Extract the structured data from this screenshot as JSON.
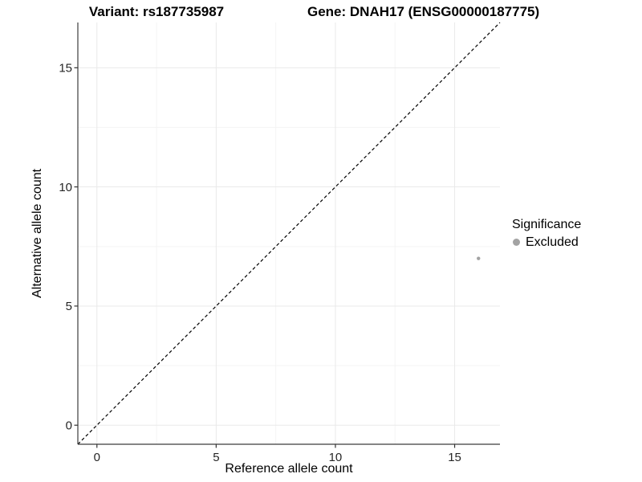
{
  "chart_data": {
    "type": "scatter",
    "titles": {
      "left": "Variant: rs187735987",
      "right": "Gene: DNAH17 (ENSG00000187775)"
    },
    "xlabel": "Reference allele count",
    "ylabel": "Alternative allele count",
    "xlim": [
      -0.8,
      16.9
    ],
    "ylim": [
      -0.8,
      16.9
    ],
    "x_ticks": [
      0,
      5,
      10,
      15
    ],
    "y_ticks": [
      0,
      5,
      10,
      15
    ],
    "x_minor_ticks": [
      2.5,
      7.5,
      12.5
    ],
    "y_minor_ticks": [
      2.5,
      7.5,
      12.5
    ],
    "grid": "major and minor gridlines, white background",
    "identity_line": {
      "slope": 1,
      "intercept": 0,
      "style": "dashed",
      "color": "#000000"
    },
    "series": [
      {
        "name": "Excluded",
        "points": [
          [
            16,
            7
          ]
        ],
        "color": "#a3a3a3",
        "point_radius": 2.2
      }
    ],
    "legend": {
      "title": "Significance",
      "position": "right",
      "entries": [
        {
          "label": "Excluded",
          "color": "#a3a3a3",
          "marker": "circle-icon"
        }
      ]
    },
    "colors": {
      "grid_major": "#e9e9e9",
      "grid_minor": "#f4f4f4",
      "axis_line": "#3c3c3c",
      "tick_mark": "#333333",
      "tick_label": "#262626",
      "point": "#a3a3a3"
    }
  }
}
